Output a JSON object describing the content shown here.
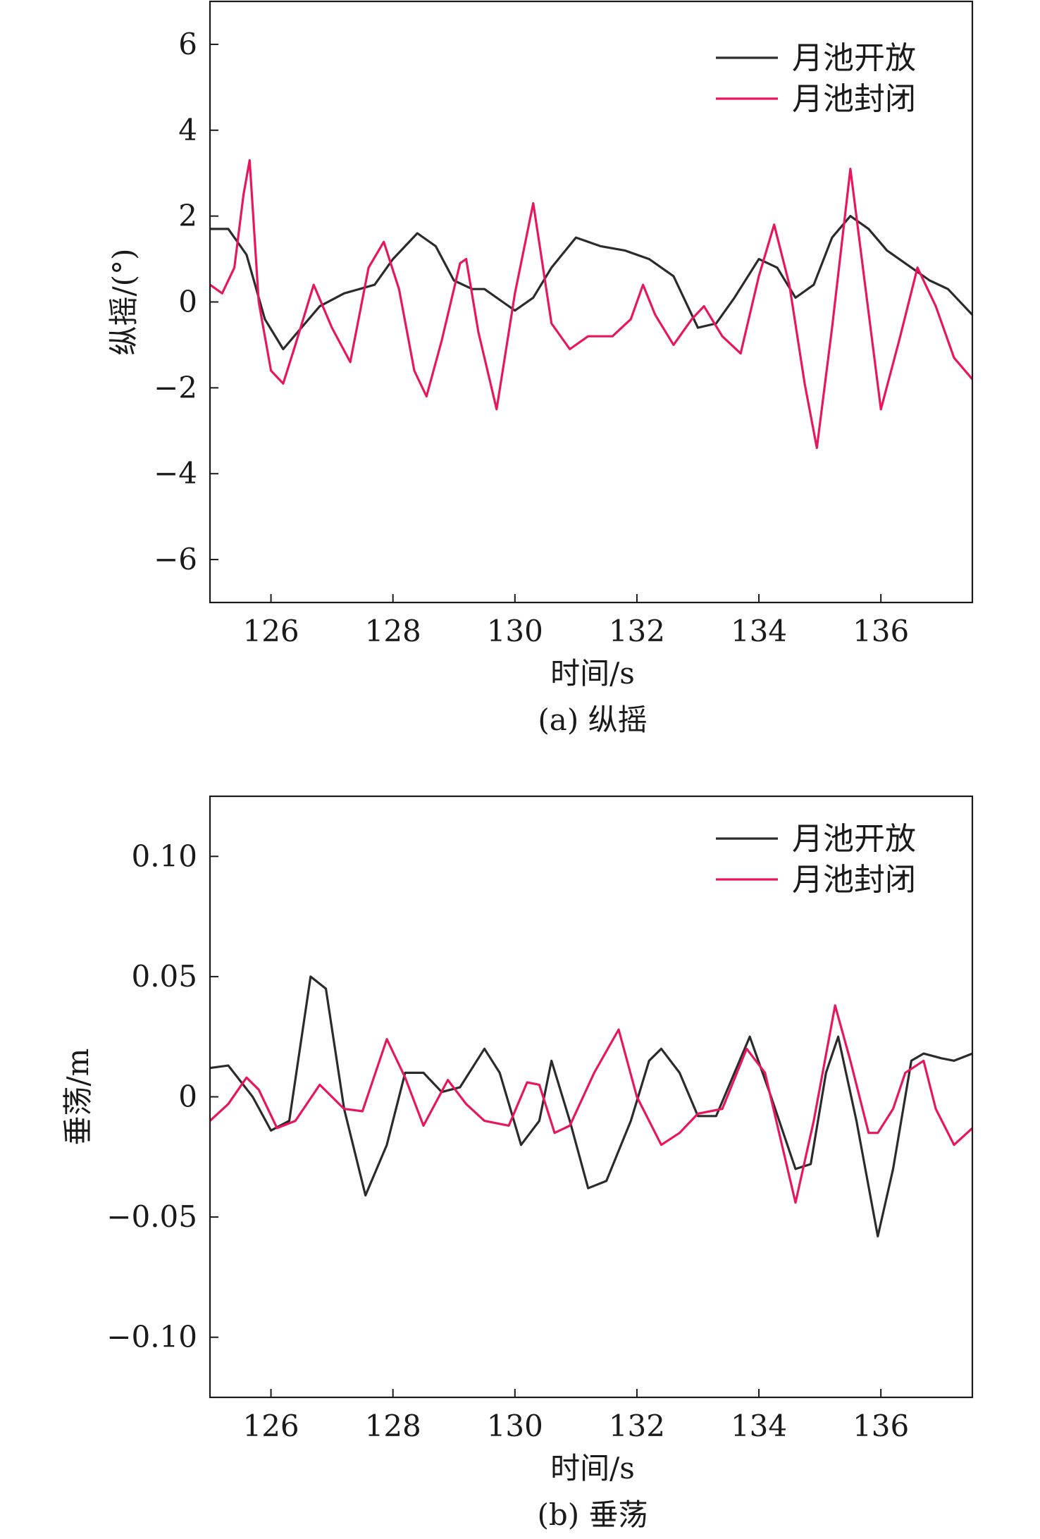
{
  "chart_data": [
    {
      "type": "line",
      "panel": "a",
      "caption": "(a) 纵摇",
      "xlabel": "时间/s",
      "ylabel": "纵摇/(°)",
      "xlim": [
        125,
        137.5
      ],
      "ylim": [
        -7,
        7
      ],
      "xticks": [
        126,
        128,
        130,
        132,
        134,
        136
      ],
      "yticks": [
        6,
        4,
        2,
        0,
        -2,
        -4,
        -6
      ],
      "ytick_labels": [
        "6",
        "4",
        "2",
        "0",
        "−2",
        "−4",
        "−6"
      ],
      "legend": "top-right",
      "grid": false,
      "series": [
        {
          "name": "月池开放",
          "color": "#2b2b2b",
          "x": [
            125.0,
            125.3,
            125.6,
            125.9,
            126.2,
            126.5,
            126.8,
            127.2,
            127.7,
            128.0,
            128.4,
            128.7,
            129.0,
            129.3,
            129.5,
            129.8,
            130.0,
            130.3,
            130.6,
            131.0,
            131.4,
            131.8,
            132.2,
            132.6,
            133.0,
            133.3,
            133.6,
            134.0,
            134.3,
            134.6,
            134.9,
            135.2,
            135.5,
            135.8,
            136.1,
            136.4,
            136.8,
            137.1,
            137.5
          ],
          "y": [
            1.7,
            1.7,
            1.1,
            -0.4,
            -1.1,
            -0.6,
            -0.1,
            0.2,
            0.4,
            1.0,
            1.6,
            1.3,
            0.5,
            0.3,
            0.3,
            0.0,
            -0.2,
            0.1,
            0.8,
            1.5,
            1.3,
            1.2,
            1.0,
            0.6,
            -0.6,
            -0.5,
            0.1,
            1.0,
            0.8,
            0.1,
            0.4,
            1.5,
            2.0,
            1.7,
            1.2,
            0.9,
            0.5,
            0.3,
            -0.3
          ]
        },
        {
          "name": "月池封闭",
          "color": "#e8175d",
          "x": [
            125.0,
            125.2,
            125.4,
            125.55,
            125.65,
            125.8,
            126.0,
            126.2,
            126.4,
            126.7,
            127.0,
            127.3,
            127.6,
            127.85,
            128.1,
            128.35,
            128.55,
            128.8,
            129.1,
            129.2,
            129.4,
            129.7,
            130.0,
            130.3,
            130.6,
            130.9,
            131.2,
            131.6,
            131.9,
            132.1,
            132.3,
            132.6,
            132.9,
            133.1,
            133.4,
            133.7,
            134.0,
            134.25,
            134.5,
            134.75,
            134.95,
            135.2,
            135.5,
            135.75,
            136.0,
            136.3,
            136.6,
            136.9,
            137.2,
            137.5
          ],
          "y": [
            0.4,
            0.2,
            0.8,
            2.5,
            3.3,
            0.0,
            -1.6,
            -1.9,
            -1.0,
            0.4,
            -0.6,
            -1.4,
            0.8,
            1.4,
            0.3,
            -1.6,
            -2.2,
            -0.9,
            0.9,
            1.0,
            -0.7,
            -2.5,
            0.2,
            2.3,
            -0.5,
            -1.1,
            -0.8,
            -0.8,
            -0.4,
            0.4,
            -0.3,
            -1.0,
            -0.4,
            -0.1,
            -0.8,
            -1.2,
            0.6,
            1.8,
            0.4,
            -1.9,
            -3.4,
            -0.6,
            3.1,
            0.3,
            -2.5,
            -0.9,
            0.8,
            -0.1,
            -1.3,
            -1.8
          ]
        }
      ]
    },
    {
      "type": "line",
      "panel": "b",
      "caption": "(b) 垂荡",
      "xlabel": "时间/s",
      "ylabel": "垂荡/m",
      "xlim": [
        125,
        137.5
      ],
      "ylim": [
        -0.125,
        0.125
      ],
      "xticks": [
        126,
        128,
        130,
        132,
        134,
        136
      ],
      "yticks": [
        0.1,
        0.05,
        0,
        -0.05,
        -0.1
      ],
      "ytick_labels": [
        "0.10",
        "0.05",
        "0",
        "−0.05",
        "−0.10"
      ],
      "legend": "top-right",
      "grid": false,
      "series": [
        {
          "name": "月池开放",
          "color": "#2b2b2b",
          "x": [
            125.0,
            125.3,
            125.7,
            126.0,
            126.3,
            126.65,
            126.9,
            127.2,
            127.55,
            127.9,
            128.2,
            128.5,
            128.8,
            129.1,
            129.5,
            129.75,
            130.1,
            130.4,
            130.6,
            130.9,
            131.2,
            131.5,
            131.9,
            132.2,
            132.4,
            132.7,
            133.0,
            133.3,
            133.6,
            133.85,
            134.2,
            134.6,
            134.85,
            135.1,
            135.3,
            135.6,
            135.95,
            136.2,
            136.5,
            136.7,
            137.0,
            137.2,
            137.5
          ],
          "y": [
            0.012,
            0.013,
            0.0,
            -0.014,
            -0.01,
            0.05,
            0.045,
            -0.005,
            -0.041,
            -0.02,
            0.01,
            0.01,
            0.002,
            0.004,
            0.02,
            0.01,
            -0.02,
            -0.01,
            0.015,
            -0.01,
            -0.038,
            -0.035,
            -0.01,
            0.015,
            0.02,
            0.01,
            -0.008,
            -0.008,
            0.01,
            0.025,
            0.0,
            -0.03,
            -0.028,
            0.01,
            0.025,
            -0.01,
            -0.058,
            -0.03,
            0.015,
            0.018,
            0.016,
            0.015,
            0.018
          ]
        },
        {
          "name": "月池封闭",
          "color": "#e8175d",
          "x": [
            125.0,
            125.3,
            125.6,
            125.8,
            126.1,
            126.4,
            126.8,
            127.2,
            127.5,
            127.9,
            128.2,
            128.5,
            128.9,
            129.2,
            129.5,
            129.9,
            130.2,
            130.4,
            130.65,
            130.9,
            131.3,
            131.7,
            132.0,
            132.4,
            132.7,
            133.0,
            133.4,
            133.8,
            134.1,
            134.6,
            134.9,
            135.25,
            135.5,
            135.8,
            135.95,
            136.2,
            136.4,
            136.7,
            136.9,
            137.2,
            137.5
          ],
          "y": [
            -0.01,
            -0.003,
            0.008,
            0.003,
            -0.013,
            -0.01,
            0.005,
            -0.005,
            -0.006,
            0.024,
            0.008,
            -0.012,
            0.007,
            -0.003,
            -0.01,
            -0.012,
            0.006,
            0.005,
            -0.015,
            -0.012,
            0.01,
            0.028,
            0.0,
            -0.02,
            -0.015,
            -0.007,
            -0.005,
            0.02,
            0.01,
            -0.044,
            -0.01,
            0.038,
            0.015,
            -0.015,
            -0.015,
            -0.005,
            0.01,
            0.015,
            -0.005,
            -0.02,
            -0.013
          ]
        }
      ]
    }
  ]
}
